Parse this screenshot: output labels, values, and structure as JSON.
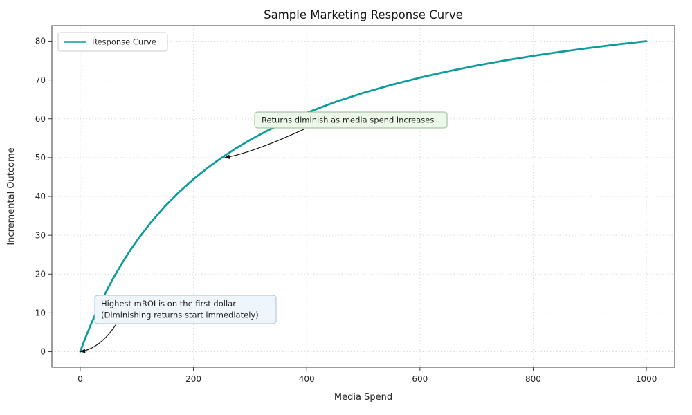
{
  "figure": {
    "background": "#ffffff"
  },
  "chart_data": {
    "type": "line",
    "title": "Sample Marketing Response Curve",
    "xlabel": "Media Spend",
    "ylabel": "Incremental Outcome",
    "xlim": [
      -50,
      1050
    ],
    "ylim": [
      -4,
      84
    ],
    "x_ticks": [
      0,
      200,
      400,
      600,
      800,
      1000
    ],
    "y_ticks": [
      0,
      10,
      20,
      30,
      40,
      50,
      60,
      70,
      80
    ],
    "grid": true,
    "legend_position": "upper left",
    "colors": {
      "grid": "#d9d9d9",
      "axis": "#3a3a3a",
      "arrow": "#111111",
      "text": "#262626"
    },
    "series": [
      {
        "name": "Response Curve",
        "color": "#0f9b9b",
        "x": [
          0,
          5,
          10,
          15,
          20,
          30,
          40,
          50,
          60,
          75,
          90,
          105,
          125,
          150,
          175,
          200,
          225,
          250,
          275,
          300,
          325,
          350,
          400,
          450,
          500,
          550,
          600,
          650,
          700,
          750,
          800,
          850,
          900,
          950,
          1000
        ],
        "y": [
          0,
          1.96,
          3.85,
          5.66,
          7.41,
          10.71,
          13.79,
          16.67,
          19.35,
          23.08,
          26.47,
          29.58,
          33.33,
          37.5,
          41.18,
          44.44,
          47.37,
          50,
          52.38,
          54.55,
          56.52,
          58.33,
          61.54,
          64.29,
          66.67,
          68.75,
          70.59,
          72.22,
          73.68,
          75,
          76.19,
          77.27,
          78.26,
          79.17,
          80
        ]
      }
    ],
    "annotations": [
      {
        "lines": [
          "Returns diminish as media spend increases"
        ],
        "box_fill": "#edf7ea",
        "box_border": "#93bb8e",
        "arrow": {
          "from": [
            395,
            57.3
          ],
          "ctrl": [
            300,
            51
          ],
          "target": [
            255,
            50
          ]
        }
      },
      {
        "lines": [
          "Highest mROI is on the first dollar",
          "(Diminishing returns start immediately)"
        ],
        "box_fill": "#eef5fb",
        "box_border": "#a9bfd3",
        "arrow": {
          "from": [
            63,
            7
          ],
          "ctrl": [
            35,
            0.8
          ],
          "target": [
            0,
            0
          ]
        }
      }
    ]
  }
}
